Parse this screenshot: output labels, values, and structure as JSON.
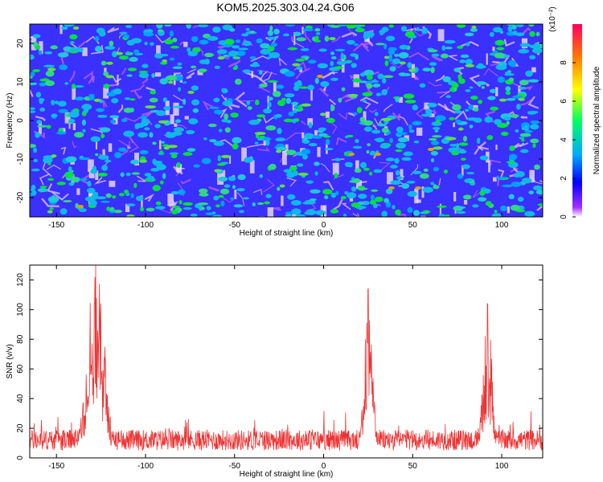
{
  "title": "KOM5.2025.303.04.24.G06",
  "chart_data": [
    {
      "type": "heatmap",
      "xlabel": "Height of straight line (km)",
      "ylabel": "Frequency (Hz)",
      "xlim": [
        -165,
        123
      ],
      "ylim": [
        -25,
        25
      ],
      "xticks": [
        -150,
        -100,
        -50,
        0,
        50,
        100
      ],
      "yticks": [
        -20,
        -10,
        0,
        10,
        20
      ],
      "colorbar": {
        "label": "Normalized spectral amplitude",
        "scale_label": "(x10⁻²)",
        "range": [
          0,
          10
        ],
        "ticks": [
          0,
          2,
          4,
          6,
          8
        ],
        "colors": [
          "#ffffff",
          "#9a28ff",
          "#0000ff",
          "#00b0ff",
          "#00ff60",
          "#ffff00",
          "#ff8000",
          "#ff0060"
        ]
      },
      "dominant_color": "#3a30ff",
      "blob_color": "#10b8e8"
    },
    {
      "type": "line",
      "xlabel": "Height of straight line (km)",
      "ylabel": "SNR (v/v)",
      "xlim": [
        -165,
        123
      ],
      "ylim": [
        0,
        130
      ],
      "xticks": [
        -150,
        -100,
        -50,
        0,
        50,
        100
      ],
      "yticks": [
        0,
        20,
        40,
        60,
        80,
        100,
        120
      ],
      "line_color": "#ee3333",
      "baseline": 12,
      "peaks": [
        {
          "x": -128,
          "y": 130
        },
        {
          "x": 25,
          "y": 114
        },
        {
          "x": 92,
          "y": 104
        }
      ]
    }
  ]
}
